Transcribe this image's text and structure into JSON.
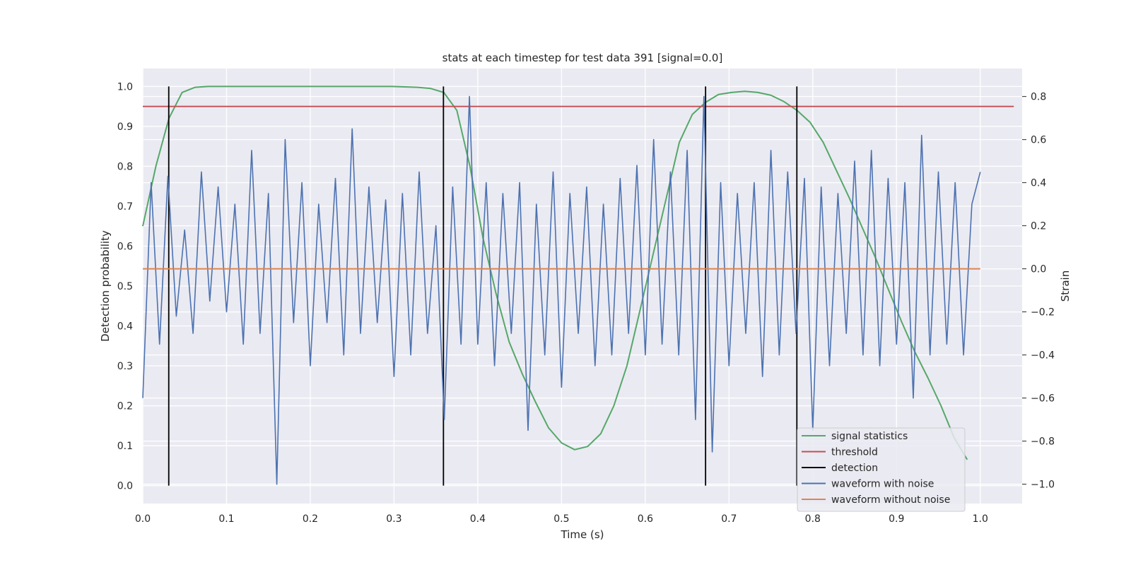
{
  "chart_data": {
    "type": "line",
    "title": "stats at each timestep for test data 391 [signal=0.0]",
    "xlabel": "Time (s)",
    "ylabel_left": "Detection probability",
    "ylabel_right": "Strain",
    "xlim": [
      0.0,
      1.05
    ],
    "ylim_left": [
      -0.045,
      1.045
    ],
    "ylim_right": [
      -1.09,
      0.93
    ],
    "x_ticks": [
      0.0,
      0.1,
      0.2,
      0.3,
      0.4,
      0.5,
      0.6,
      0.7,
      0.8,
      0.9,
      1.0
    ],
    "y_ticks_left": [
      0.0,
      0.1,
      0.2,
      0.3,
      0.4,
      0.5,
      0.6,
      0.7,
      0.8,
      0.9,
      1.0
    ],
    "y_ticks_right": [
      -1.0,
      -0.8,
      -0.6,
      -0.4,
      -0.2,
      0.0,
      0.2,
      0.4,
      0.6,
      0.8
    ],
    "grid": true,
    "legend_position": "lower-right",
    "colors": {
      "background": "#eaeaf2",
      "grid": "#ffffff",
      "signal": "#55a868",
      "threshold": "#c44e52",
      "detection": "#000000",
      "noisy": "#4c72b0",
      "clean": "#dd8452"
    },
    "series": [
      {
        "name": "signal statistics",
        "axis": "left",
        "x": [
          0.0,
          0.0156,
          0.0312,
          0.0469,
          0.0625,
          0.0781,
          0.0938,
          0.1094,
          0.125,
          0.1406,
          0.1562,
          0.1719,
          0.1875,
          0.2031,
          0.2188,
          0.2344,
          0.25,
          0.2656,
          0.2812,
          0.2969,
          0.3125,
          0.3281,
          0.3438,
          0.3594,
          0.375,
          0.3906,
          0.4062,
          0.4219,
          0.4375,
          0.4531,
          0.4688,
          0.4844,
          0.5,
          0.5156,
          0.5312,
          0.5469,
          0.5625,
          0.5781,
          0.5938,
          0.6094,
          0.625,
          0.6406,
          0.6562,
          0.6719,
          0.6875,
          0.7031,
          0.7188,
          0.7344,
          0.75,
          0.7656,
          0.7812,
          0.7969,
          0.8125,
          0.8281,
          0.8438,
          0.8594,
          0.875,
          0.8906,
          0.9062,
          0.9219,
          0.9375,
          0.9531,
          0.9688,
          0.9844
        ],
        "values": [
          0.65,
          0.8,
          0.92,
          0.985,
          0.998,
          1.0,
          1.0,
          1.0,
          1.0,
          1.0,
          1.0,
          1.0,
          1.0,
          1.0,
          1.0,
          1.0,
          1.0,
          1.0,
          1.0,
          1.0,
          0.999,
          0.998,
          0.995,
          0.985,
          0.94,
          0.8,
          0.62,
          0.48,
          0.36,
          0.28,
          0.21,
          0.145,
          0.107,
          0.09,
          0.098,
          0.13,
          0.2,
          0.3,
          0.44,
          0.58,
          0.72,
          0.86,
          0.93,
          0.96,
          0.98,
          0.985,
          0.988,
          0.985,
          0.978,
          0.962,
          0.94,
          0.91,
          0.86,
          0.79,
          0.72,
          0.645,
          0.57,
          0.49,
          0.41,
          0.335,
          0.27,
          0.2,
          0.12,
          0.065
        ]
      },
      {
        "name": "threshold",
        "axis": "left",
        "x": [
          0.0,
          1.04
        ],
        "values": [
          0.95,
          0.95
        ]
      },
      {
        "name": "detection",
        "axis": "left",
        "x_positions": [
          0.031,
          0.359,
          0.672,
          0.781
        ],
        "ymin": 0.0,
        "ymax": 1.0
      },
      {
        "name": "waveform with noise",
        "axis": "right",
        "x": [
          0.0,
          0.01,
          0.02,
          0.03,
          0.04,
          0.05,
          0.06,
          0.07,
          0.08,
          0.09,
          0.1,
          0.11,
          0.12,
          0.13,
          0.14,
          0.15,
          0.16,
          0.17,
          0.18,
          0.19,
          0.2,
          0.21,
          0.22,
          0.23,
          0.24,
          0.25,
          0.26,
          0.27,
          0.28,
          0.29,
          0.3,
          0.31,
          0.32,
          0.33,
          0.34,
          0.35,
          0.36,
          0.37,
          0.38,
          0.39,
          0.4,
          0.41,
          0.42,
          0.43,
          0.44,
          0.45,
          0.46,
          0.47,
          0.48,
          0.49,
          0.5,
          0.51,
          0.52,
          0.53,
          0.54,
          0.55,
          0.56,
          0.57,
          0.58,
          0.59,
          0.6,
          0.61,
          0.62,
          0.63,
          0.64,
          0.65,
          0.66,
          0.67,
          0.68,
          0.69,
          0.7,
          0.71,
          0.72,
          0.73,
          0.74,
          0.75,
          0.76,
          0.77,
          0.78,
          0.79,
          0.8,
          0.81,
          0.82,
          0.83,
          0.84,
          0.85,
          0.86,
          0.87,
          0.88,
          0.89,
          0.9,
          0.91,
          0.92,
          0.93,
          0.94,
          0.95,
          0.96,
          0.97,
          0.98,
          0.99,
          1.0
        ],
        "values": [
          -0.6,
          0.4,
          -0.35,
          0.43,
          -0.22,
          0.18,
          -0.3,
          0.45,
          -0.15,
          0.38,
          -0.2,
          0.3,
          -0.35,
          0.55,
          -0.3,
          0.35,
          -1.0,
          0.6,
          -0.25,
          0.4,
          -0.45,
          0.3,
          -0.25,
          0.42,
          -0.4,
          0.65,
          -0.3,
          0.38,
          -0.25,
          0.32,
          -0.5,
          0.35,
          -0.4,
          0.45,
          -0.3,
          0.2,
          -0.7,
          0.38,
          -0.35,
          0.8,
          -0.35,
          0.4,
          -0.45,
          0.35,
          -0.3,
          0.4,
          -0.75,
          0.3,
          -0.4,
          0.45,
          -0.55,
          0.35,
          -0.3,
          0.38,
          -0.45,
          0.3,
          -0.4,
          0.42,
          -0.3,
          0.48,
          -0.4,
          0.6,
          -0.35,
          0.45,
          -0.4,
          0.55,
          -0.7,
          0.8,
          -0.85,
          0.4,
          -0.45,
          0.35,
          -0.3,
          0.4,
          -0.5,
          0.55,
          -0.4,
          0.45,
          -0.3,
          0.42,
          -0.75,
          0.38,
          -0.45,
          0.35,
          -0.3,
          0.5,
          -0.4,
          0.55,
          -0.45,
          0.42,
          -0.35,
          0.4,
          -0.6,
          0.62,
          -0.4,
          0.45,
          -0.35,
          0.4,
          -0.4,
          0.3,
          0.45
        ]
      },
      {
        "name": "waveform without noise",
        "axis": "right",
        "x": [
          0.0,
          1.0
        ],
        "values": [
          0.0,
          0.0
        ]
      }
    ]
  }
}
